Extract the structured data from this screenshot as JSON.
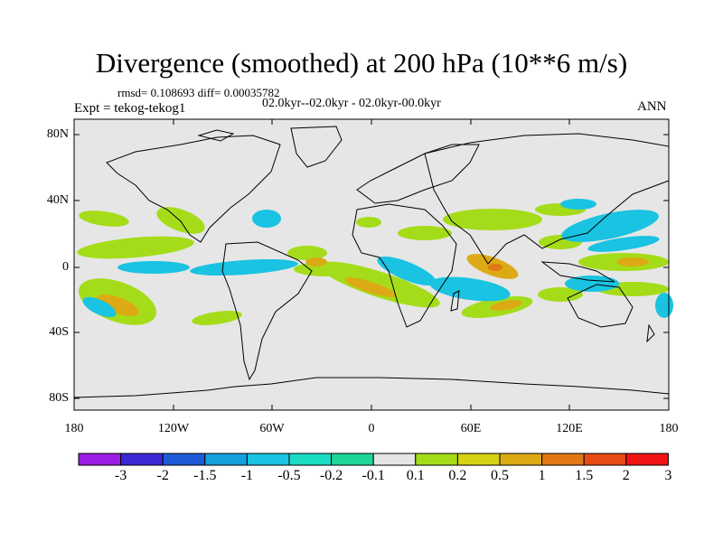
{
  "title": "Divergence (smoothed) at 200 hPa (10**6 m/s)",
  "stats": "rmsd= 0.108693 diff= 0.00035782",
  "period": "02.0kyr--02.0kyr - 02.0kyr-00.0kyr",
  "experiment": "Expt = tekog-tekog1",
  "season": "ANN",
  "map": {
    "y_labels": [
      "80N",
      "40N",
      "0",
      "40S",
      "80S"
    ],
    "x_labels": [
      "180",
      "120W",
      "60W",
      "0",
      "60E",
      "120E",
      "180"
    ]
  },
  "colorbar": {
    "labels": [
      "-3",
      "-2",
      "-1.5",
      "-1",
      "-0.5",
      "-0.2",
      "-0.1",
      "0.1",
      "0.2",
      "0.5",
      "1",
      "1.5",
      "2",
      "3"
    ],
    "colors": [
      "#9b1ee6",
      "#3c28d2",
      "#1e5ad7",
      "#14a0dc",
      "#19c3e1",
      "#19dcc3",
      "#1ed796",
      "#e6e6e6",
      "#a5dc19",
      "#d7d214",
      "#dcaa14",
      "#e17814",
      "#e64b14",
      "#f01414"
    ]
  }
}
